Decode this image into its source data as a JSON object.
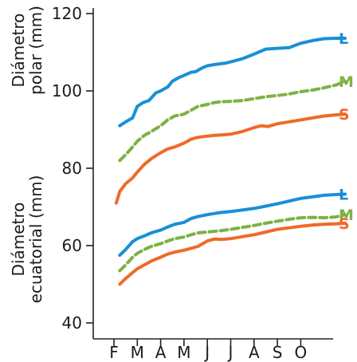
{
  "chart_data": {
    "type": "line",
    "ylabel_top": [
      "Diámetro",
      "polar (mm)"
    ],
    "ylabel_bottom": [
      "Diámetro",
      "ecuatorial (mm)"
    ],
    "ylim": [
      37,
      120
    ],
    "yticks": [
      40,
      60,
      80,
      100,
      120
    ],
    "categories": [
      "F",
      "M",
      "A",
      "M",
      "J",
      "J",
      "A",
      "S",
      "O"
    ],
    "grid": false,
    "colors": {
      "L": "#1a8fd6",
      "M": "#7db243",
      "S": "#ef6a2a"
    },
    "series": [
      {
        "name": "L",
        "group": "polar",
        "style": "solid",
        "x": [
          0.25,
          0.5,
          0.8,
          1.0,
          1.25,
          1.5,
          1.8,
          2.0,
          2.3,
          2.5,
          2.8,
          3.0,
          3.3,
          3.5,
          3.8,
          4.0,
          4.3,
          4.5,
          4.8,
          5.0,
          5.5,
          6.0,
          6.5,
          7.0,
          7.5,
          8.0,
          8.5,
          9.0,
          9.5,
          9.9
        ],
        "values": [
          91,
          92,
          93,
          96,
          97,
          97.5,
          99.5,
          100,
          101,
          102.5,
          103.5,
          104,
          104.8,
          105,
          106,
          106.5,
          106.8,
          107,
          107.2,
          107.5,
          108.3,
          109.5,
          110.8,
          111,
          111.2,
          112.3,
          113,
          113.5,
          113.6,
          113.6
        ]
      },
      {
        "name": "M",
        "group": "polar",
        "style": "dashed",
        "x": [
          0.25,
          0.5,
          0.8,
          1.0,
          1.3,
          1.6,
          2.0,
          2.3,
          2.6,
          3.0,
          3.3,
          3.6,
          4.0,
          4.3,
          4.6,
          5.0,
          5.5,
          6.0,
          6.5,
          7.0,
          7.5,
          8.0,
          8.5,
          9.0,
          9.5,
          9.9
        ],
        "values": [
          82,
          83.5,
          85.5,
          87,
          88.5,
          89.5,
          91,
          92.5,
          93.5,
          94,
          95,
          96,
          96.5,
          97,
          97.2,
          97.3,
          97.5,
          98,
          98.5,
          98.8,
          99.2,
          99.8,
          100.2,
          100.8,
          101.5,
          102.5
        ]
      },
      {
        "name": "S",
        "group": "polar",
        "style": "solid",
        "x": [
          0.1,
          0.25,
          0.5,
          0.8,
          1.0,
          1.3,
          1.6,
          2.0,
          2.3,
          2.6,
          3.0,
          3.3,
          3.6,
          4.0,
          4.3,
          4.6,
          5.0,
          5.5,
          6.0,
          6.3,
          6.6,
          7.0,
          7.5,
          8.0,
          8.5,
          9.0,
          9.5,
          9.9
        ],
        "values": [
          71,
          74,
          76,
          77.5,
          79,
          81,
          82.5,
          84,
          85,
          85.5,
          86.5,
          87.5,
          88,
          88.3,
          88.5,
          88.6,
          88.8,
          89.5,
          90.5,
          91,
          90.8,
          91.5,
          92,
          92.5,
          93,
          93.5,
          93.8,
          94
        ]
      },
      {
        "name": "L",
        "group": "ecuatorial",
        "style": "solid",
        "x": [
          0.25,
          0.5,
          0.8,
          1.0,
          1.3,
          1.6,
          2.0,
          2.3,
          2.6,
          3.0,
          3.3,
          3.6,
          4.0,
          4.5,
          5.0,
          5.5,
          6.0,
          6.5,
          7.0,
          7.5,
          8.0,
          8.5,
          9.0,
          9.5,
          9.9
        ],
        "values": [
          57.5,
          59,
          61,
          61.8,
          62.5,
          63.3,
          64,
          64.8,
          65.5,
          66,
          67,
          67.5,
          68,
          68.5,
          68.8,
          69.2,
          69.6,
          70.2,
          70.8,
          71.5,
          72.2,
          72.6,
          73,
          73.2,
          73.3
        ]
      },
      {
        "name": "M",
        "group": "ecuatorial",
        "style": "dashed",
        "x": [
          0.25,
          0.5,
          0.8,
          1.0,
          1.3,
          1.6,
          2.0,
          2.3,
          2.6,
          3.0,
          3.3,
          3.6,
          4.0,
          4.5,
          5.0,
          5.5,
          6.0,
          6.5,
          7.0,
          7.5,
          8.0,
          8.5,
          9.0,
          9.5,
          9.9
        ],
        "values": [
          53.5,
          55,
          57,
          58,
          59,
          59.8,
          60.5,
          61.2,
          61.8,
          62.2,
          62.8,
          63.3,
          63.5,
          63.8,
          64.2,
          64.7,
          65.2,
          65.8,
          66.3,
          66.8,
          67.2,
          67.3,
          67.2,
          67.4,
          68
        ]
      },
      {
        "name": "S",
        "group": "ecuatorial",
        "style": "solid",
        "x": [
          0.25,
          0.5,
          0.8,
          1.0,
          1.3,
          1.6,
          2.0,
          2.3,
          2.6,
          3.0,
          3.3,
          3.6,
          4.0,
          4.3,
          4.6,
          5.0,
          5.5,
          6.0,
          6.5,
          7.0,
          7.5,
          8.0,
          8.5,
          9.0,
          9.5,
          9.9
        ],
        "values": [
          50,
          51.5,
          53,
          54,
          55,
          56,
          57,
          57.8,
          58.3,
          58.8,
          59.3,
          59.8,
          61.2,
          61.7,
          61.6,
          61.8,
          62.3,
          62.8,
          63.5,
          64.2,
          64.6,
          65,
          65.3,
          65.5,
          65.6,
          65.8
        ]
      }
    ]
  }
}
